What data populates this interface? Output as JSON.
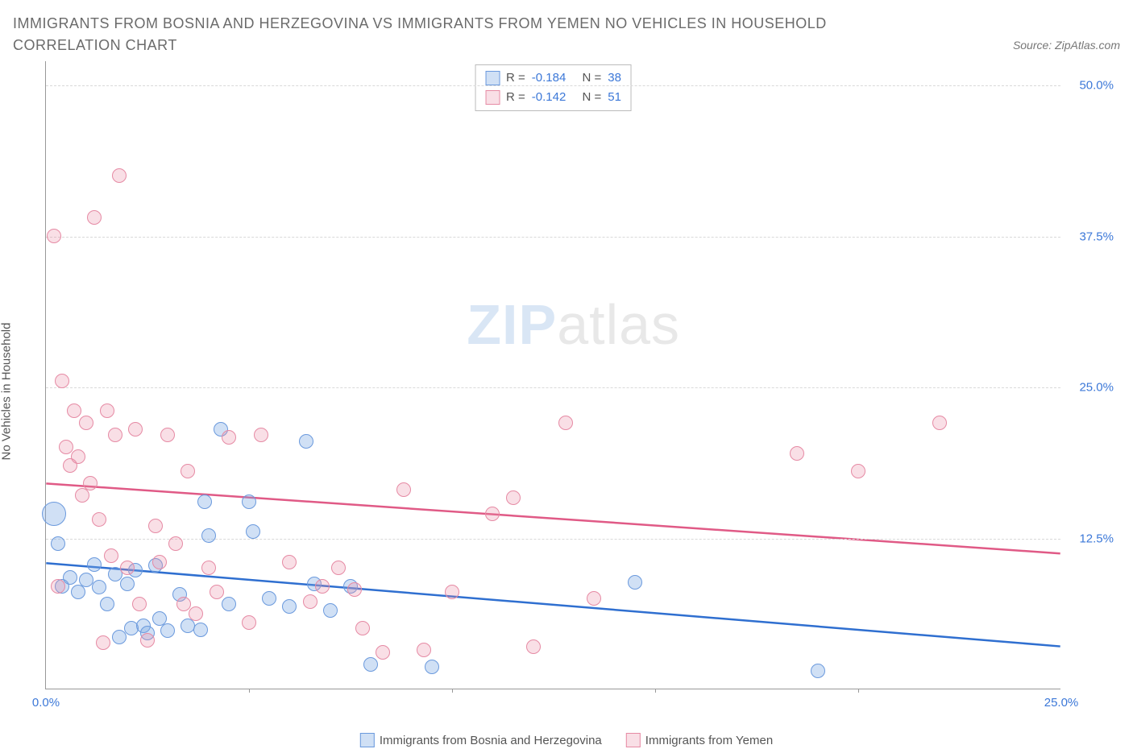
{
  "title": "IMMIGRANTS FROM BOSNIA AND HERZEGOVINA VS IMMIGRANTS FROM YEMEN NO VEHICLES IN HOUSEHOLD CORRELATION CHART",
  "source": "Source: ZipAtlas.com",
  "y_axis_label": "No Vehicles in Household",
  "watermark_a": "ZIP",
  "watermark_b": "atlas",
  "chart": {
    "type": "scatter",
    "xlim": [
      0,
      25
    ],
    "ylim": [
      0,
      52
    ],
    "x_ticks": [
      0,
      25
    ],
    "x_tick_labels": [
      "0.0%",
      "25.0%"
    ],
    "x_minor_marks": [
      5,
      10,
      15,
      20
    ],
    "y_ticks": [
      12.5,
      25,
      37.5,
      50
    ],
    "y_tick_labels": [
      "12.5%",
      "25.0%",
      "37.5%",
      "50.0%"
    ],
    "grid_color": "#d9d9d9",
    "axis_color": "#999999",
    "background_color": "#ffffff",
    "tick_color": "#3c78d8",
    "series": [
      {
        "id": "a",
        "name": "Immigrants from Bosnia and Herzegovina",
        "fill": "rgba(120,165,225,0.35)",
        "stroke": "#6a99dd",
        "line_color": "#2f6fd0",
        "marker_r": 9,
        "reg": {
          "y_at_x0": 10.4,
          "y_at_xmax": 3.5
        },
        "stats": {
          "R_label": "R =",
          "R": "-0.184",
          "N_label": "N =",
          "N": "38"
        },
        "points": [
          {
            "x": 0.2,
            "y": 14.5,
            "r": 15
          },
          {
            "x": 0.3,
            "y": 12.0
          },
          {
            "x": 0.4,
            "y": 8.5
          },
          {
            "x": 0.6,
            "y": 9.2
          },
          {
            "x": 0.8,
            "y": 8.0
          },
          {
            "x": 1.0,
            "y": 9.0
          },
          {
            "x": 1.2,
            "y": 10.3
          },
          {
            "x": 1.3,
            "y": 8.4
          },
          {
            "x": 1.5,
            "y": 7.0
          },
          {
            "x": 1.7,
            "y": 9.5
          },
          {
            "x": 1.8,
            "y": 4.3
          },
          {
            "x": 2.0,
            "y": 8.7
          },
          {
            "x": 2.1,
            "y": 5.0
          },
          {
            "x": 2.2,
            "y": 9.8
          },
          {
            "x": 2.4,
            "y": 5.2
          },
          {
            "x": 2.5,
            "y": 4.6
          },
          {
            "x": 2.7,
            "y": 10.2
          },
          {
            "x": 2.8,
            "y": 5.8
          },
          {
            "x": 3.0,
            "y": 4.8
          },
          {
            "x": 3.3,
            "y": 7.8
          },
          {
            "x": 3.5,
            "y": 5.2
          },
          {
            "x": 3.9,
            "y": 15.5
          },
          {
            "x": 4.0,
            "y": 12.7
          },
          {
            "x": 4.3,
            "y": 21.5
          },
          {
            "x": 4.5,
            "y": 7.0
          },
          {
            "x": 5.0,
            "y": 15.5
          },
          {
            "x": 5.1,
            "y": 13.0
          },
          {
            "x": 5.5,
            "y": 7.5
          },
          {
            "x": 6.0,
            "y": 6.8
          },
          {
            "x": 6.4,
            "y": 20.5
          },
          {
            "x": 6.6,
            "y": 8.7
          },
          {
            "x": 7.0,
            "y": 6.5
          },
          {
            "x": 7.5,
            "y": 8.5
          },
          {
            "x": 8.0,
            "y": 2.0
          },
          {
            "x": 9.5,
            "y": 1.8
          },
          {
            "x": 14.5,
            "y": 8.8
          },
          {
            "x": 19.0,
            "y": 1.5
          },
          {
            "x": 3.8,
            "y": 4.9
          }
        ]
      },
      {
        "id": "b",
        "name": "Immigrants from Yemen",
        "fill": "rgba(235,140,165,0.28)",
        "stroke": "#e68aa4",
        "line_color": "#e05a86",
        "marker_r": 9,
        "reg": {
          "y_at_x0": 17.0,
          "y_at_xmax": 11.2
        },
        "stats": {
          "R_label": "R =",
          "R": "-0.142",
          "N_label": "N =",
          "N": "51"
        },
        "points": [
          {
            "x": 0.2,
            "y": 37.5
          },
          {
            "x": 0.4,
            "y": 25.5
          },
          {
            "x": 0.5,
            "y": 20.0
          },
          {
            "x": 0.6,
            "y": 18.5
          },
          {
            "x": 0.7,
            "y": 23.0
          },
          {
            "x": 0.8,
            "y": 19.2
          },
          {
            "x": 0.9,
            "y": 16.0
          },
          {
            "x": 1.0,
            "y": 22.0
          },
          {
            "x": 1.1,
            "y": 17.0
          },
          {
            "x": 1.2,
            "y": 39.0
          },
          {
            "x": 1.3,
            "y": 14.0
          },
          {
            "x": 1.5,
            "y": 23.0
          },
          {
            "x": 1.6,
            "y": 11.0
          },
          {
            "x": 1.7,
            "y": 21.0
          },
          {
            "x": 1.8,
            "y": 42.5
          },
          {
            "x": 2.0,
            "y": 10.0
          },
          {
            "x": 2.2,
            "y": 21.5
          },
          {
            "x": 2.3,
            "y": 7.0
          },
          {
            "x": 2.5,
            "y": 4.0
          },
          {
            "x": 2.7,
            "y": 13.5
          },
          {
            "x": 2.8,
            "y": 10.5
          },
          {
            "x": 3.0,
            "y": 21.0
          },
          {
            "x": 3.2,
            "y": 12.0
          },
          {
            "x": 3.4,
            "y": 7.0
          },
          {
            "x": 3.5,
            "y": 18.0
          },
          {
            "x": 3.7,
            "y": 6.2
          },
          {
            "x": 4.0,
            "y": 10.0
          },
          {
            "x": 4.2,
            "y": 8.0
          },
          {
            "x": 4.5,
            "y": 20.8
          },
          {
            "x": 5.0,
            "y": 5.5
          },
          {
            "x": 5.3,
            "y": 21.0
          },
          {
            "x": 6.0,
            "y": 10.5
          },
          {
            "x": 6.5,
            "y": 7.2
          },
          {
            "x": 6.8,
            "y": 8.5
          },
          {
            "x": 7.2,
            "y": 10.0
          },
          {
            "x": 7.6,
            "y": 8.2
          },
          {
            "x": 7.8,
            "y": 5.0
          },
          {
            "x": 8.3,
            "y": 3.0
          },
          {
            "x": 8.8,
            "y": 16.5
          },
          {
            "x": 9.3,
            "y": 3.2
          },
          {
            "x": 10.0,
            "y": 8.0
          },
          {
            "x": 11.0,
            "y": 14.5
          },
          {
            "x": 11.5,
            "y": 15.8
          },
          {
            "x": 12.0,
            "y": 3.5
          },
          {
            "x": 12.8,
            "y": 22.0
          },
          {
            "x": 13.5,
            "y": 7.5
          },
          {
            "x": 18.5,
            "y": 19.5
          },
          {
            "x": 20.0,
            "y": 18.0
          },
          {
            "x": 22.0,
            "y": 22.0
          },
          {
            "x": 0.3,
            "y": 8.5
          },
          {
            "x": 1.4,
            "y": 3.8
          }
        ]
      }
    ]
  },
  "legend": {
    "items": [
      "Immigrants from Bosnia and Herzegovina",
      "Immigrants from Yemen"
    ]
  }
}
